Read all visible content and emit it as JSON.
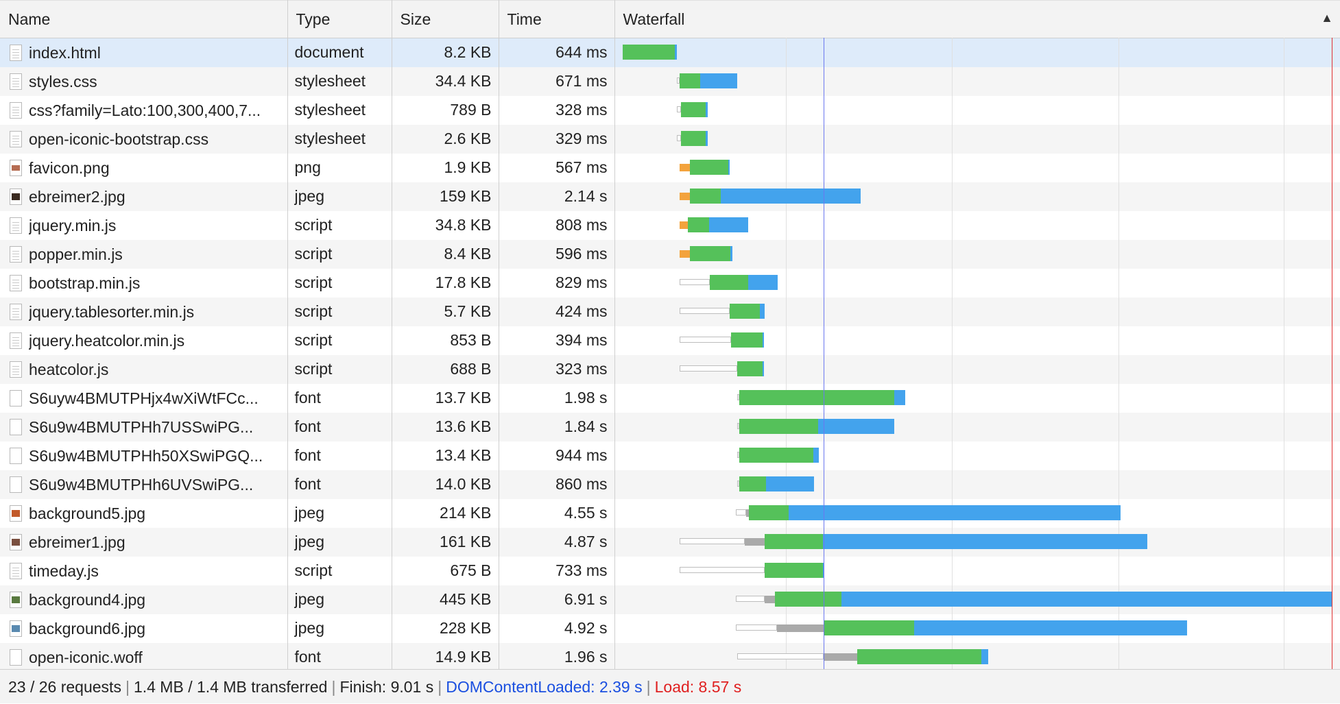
{
  "columns": {
    "name": "Name",
    "type": "Type",
    "size": "Size",
    "time": "Time",
    "waterfall": "Waterfall"
  },
  "sort_indicator": "▲",
  "rows": [
    {
      "name": "index.html",
      "type": "document",
      "size": "8.2 KB",
      "time": "644 ms",
      "icon": "document-icon",
      "wait": [
        0,
        0
      ],
      "queue": [
        0,
        0
      ],
      "dns": [
        0,
        0
      ],
      "ttfb": [
        0.004,
        0.077
      ],
      "dl": [
        0.077,
        0.08
      ]
    },
    {
      "name": "styles.css",
      "type": "stylesheet",
      "size": "34.4 KB",
      "time": "671 ms",
      "icon": "document-icon",
      "wait": [
        0.08,
        0.084
      ],
      "queue": [
        0,
        0
      ],
      "dns": [
        0,
        0
      ],
      "ttfb": [
        0.084,
        0.113
      ],
      "dl": [
        0.113,
        0.165
      ]
    },
    {
      "name": "css?family=Lato:100,300,400,7...",
      "type": "stylesheet",
      "size": "789 B",
      "time": "328 ms",
      "icon": "document-icon",
      "wait": [
        0.08,
        0.086
      ],
      "queue": [
        0,
        0
      ],
      "dns": [
        0,
        0
      ],
      "ttfb": [
        0.086,
        0.12
      ],
      "dl": [
        0.12,
        0.123
      ]
    },
    {
      "name": "open-iconic-bootstrap.css",
      "type": "stylesheet",
      "size": "2.6 KB",
      "time": "329 ms",
      "icon": "document-icon",
      "wait": [
        0.08,
        0.086
      ],
      "queue": [
        0,
        0
      ],
      "dns": [
        0,
        0
      ],
      "ttfb": [
        0.086,
        0.12
      ],
      "dl": [
        0.12,
        0.123
      ]
    },
    {
      "name": "favicon.png",
      "type": "png",
      "size": "1.9 KB",
      "time": "567 ms",
      "icon": "png-icon",
      "wait": [
        0,
        0
      ],
      "queue": [
        0,
        0
      ],
      "dns": [
        0.084,
        0.098
      ],
      "ttfb": [
        0.098,
        0.152
      ],
      "dl": [
        0.152,
        0.154
      ]
    },
    {
      "name": "ebreimer2.jpg",
      "type": "jpeg",
      "size": "159 KB",
      "time": "2.14 s",
      "icon": "image-icon",
      "thumb": "#3a2a20",
      "wait": [
        0,
        0
      ],
      "queue": [
        0,
        0
      ],
      "dns": [
        0.084,
        0.098
      ],
      "ttfb": [
        0.098,
        0.142
      ],
      "dl": [
        0.142,
        0.338
      ]
    },
    {
      "name": "jquery.min.js",
      "type": "script",
      "size": "34.8 KB",
      "time": "808 ms",
      "icon": "document-icon",
      "wait": [
        0,
        0
      ],
      "queue": [
        0,
        0
      ],
      "dns": [
        0.084,
        0.095
      ],
      "ttfb": [
        0.095,
        0.125
      ],
      "dl": [
        0.125,
        0.18
      ]
    },
    {
      "name": "popper.min.js",
      "type": "script",
      "size": "8.4 KB",
      "time": "596 ms",
      "icon": "document-icon",
      "wait": [
        0,
        0
      ],
      "queue": [
        0,
        0
      ],
      "dns": [
        0.084,
        0.098
      ],
      "ttfb": [
        0.098,
        0.155
      ],
      "dl": [
        0.155,
        0.158
      ]
    },
    {
      "name": "bootstrap.min.js",
      "type": "script",
      "size": "17.8 KB",
      "time": "829 ms",
      "icon": "document-icon",
      "wait": [
        0.084,
        0.126
      ],
      "queue": [
        0,
        0
      ],
      "dns": [
        0,
        0
      ],
      "ttfb": [
        0.126,
        0.18
      ],
      "dl": [
        0.18,
        0.222
      ]
    },
    {
      "name": "jquery.tablesorter.min.js",
      "type": "script",
      "size": "5.7 KB",
      "time": "424 ms",
      "icon": "document-icon",
      "wait": [
        0.084,
        0.154
      ],
      "queue": [
        0,
        0
      ],
      "dns": [
        0,
        0
      ],
      "ttfb": [
        0.154,
        0.197
      ],
      "dl": [
        0.197,
        0.203
      ]
    },
    {
      "name": "jquery.heatcolor.min.js",
      "type": "script",
      "size": "853 B",
      "time": "394 ms",
      "icon": "document-icon",
      "wait": [
        0.084,
        0.156
      ],
      "queue": [
        0,
        0
      ],
      "dns": [
        0,
        0
      ],
      "ttfb": [
        0.156,
        0.2
      ],
      "dl": [
        0.2,
        0.202
      ]
    },
    {
      "name": "heatcolor.js",
      "type": "script",
      "size": "688 B",
      "time": "323 ms",
      "icon": "document-icon",
      "wait": [
        0.084,
        0.165
      ],
      "queue": [
        0,
        0
      ],
      "dns": [
        0,
        0
      ],
      "ttfb": [
        0.165,
        0.2
      ],
      "dl": [
        0.2,
        0.202
      ]
    },
    {
      "name": "S6uyw4BMUTPHjx4wXiWtFCc...",
      "type": "font",
      "size": "13.7 KB",
      "time": "1.98 s",
      "icon": "font-icon",
      "wait": [
        0.165,
        0.168
      ],
      "queue": [
        0,
        0
      ],
      "dns": [
        0,
        0
      ],
      "ttfb": [
        0.168,
        0.385
      ],
      "dl": [
        0.385,
        0.401
      ]
    },
    {
      "name": "S6u9w4BMUTPHh7USSwiPG...",
      "type": "font",
      "size": "13.6 KB",
      "time": "1.84 s",
      "icon": "font-icon",
      "wait": [
        0.165,
        0.168
      ],
      "queue": [
        0,
        0
      ],
      "dns": [
        0,
        0
      ],
      "ttfb": [
        0.168,
        0.278
      ],
      "dl": [
        0.278,
        0.385
      ]
    },
    {
      "name": "S6u9w4BMUTPHh50XSwiPGQ...",
      "type": "font",
      "size": "13.4 KB",
      "time": "944 ms",
      "icon": "font-icon",
      "wait": [
        0.165,
        0.168
      ],
      "queue": [
        0,
        0
      ],
      "dns": [
        0,
        0
      ],
      "ttfb": [
        0.168,
        0.272
      ],
      "dl": [
        0.272,
        0.279
      ]
    },
    {
      "name": "S6u9w4BMUTPHh6UVSwiPG...",
      "type": "font",
      "size": "14.0 KB",
      "time": "860 ms",
      "icon": "font-icon",
      "wait": [
        0.165,
        0.168
      ],
      "queue": [
        0,
        0
      ],
      "dns": [
        0,
        0
      ],
      "ttfb": [
        0.168,
        0.205
      ],
      "dl": [
        0.205,
        0.273
      ]
    },
    {
      "name": "background5.jpg",
      "type": "jpeg",
      "size": "214 KB",
      "time": "4.55 s",
      "icon": "image-icon",
      "thumb": "#c25a2a",
      "wait": [
        0.163,
        0.177
      ],
      "queue": [
        0.177,
        0.181
      ],
      "dns": [
        0,
        0
      ],
      "ttfb": [
        0.181,
        0.237
      ],
      "dl": [
        0.237,
        0.703
      ]
    },
    {
      "name": "ebreimer1.jpg",
      "type": "jpeg",
      "size": "161 KB",
      "time": "4.87 s",
      "icon": "image-icon",
      "thumb": "#7a5040",
      "wait": [
        0.084,
        0.175
      ],
      "queue": [
        0.175,
        0.203
      ],
      "dns": [
        0,
        0
      ],
      "ttfb": [
        0.203,
        0.285
      ],
      "dl": [
        0.285,
        0.741
      ]
    },
    {
      "name": "timeday.js",
      "type": "script",
      "size": "675 B",
      "time": "733 ms",
      "icon": "document-icon",
      "wait": [
        0.084,
        0.203
      ],
      "queue": [
        0,
        0
      ],
      "dns": [
        0,
        0
      ],
      "ttfb": [
        0.203,
        0.285
      ],
      "dl": [
        0.285,
        0.287
      ]
    },
    {
      "name": "background4.jpg",
      "type": "jpeg",
      "size": "445 KB",
      "time": "6.91 s",
      "icon": "image-icon",
      "thumb": "#5a7a40",
      "wait": [
        0.163,
        0.203
      ],
      "queue": [
        0.203,
        0.218
      ],
      "dns": [
        0,
        0
      ],
      "ttfb": [
        0.218,
        0.311
      ],
      "dl": [
        0.311,
        1.0
      ]
    },
    {
      "name": "background6.jpg",
      "type": "jpeg",
      "size": "228 KB",
      "time": "4.92 s",
      "icon": "image-icon",
      "thumb": "#5a8ab0",
      "wait": [
        0.163,
        0.221
      ],
      "queue": [
        0.221,
        0.286
      ],
      "dns": [
        0,
        0
      ],
      "ttfb": [
        0.286,
        0.413
      ],
      "dl": [
        0.413,
        0.797
      ]
    },
    {
      "name": "open-iconic.woff",
      "type": "font",
      "size": "14.9 KB",
      "time": "1.96 s",
      "icon": "font-icon",
      "wait": [
        0.165,
        0.286
      ],
      "queue": [
        0.286,
        0.333
      ],
      "dns": [
        0,
        0
      ],
      "ttfb": [
        0.333,
        0.508
      ],
      "dl": [
        0.508,
        0.517
      ]
    }
  ],
  "timeline": {
    "grid_marks": [
      0.233,
      0.466,
      0.7,
      0.933
    ],
    "dcl_mark": 0.286,
    "load_mark": 1.0
  },
  "footer": {
    "requests": "23 / 26 requests",
    "transferred": "1.4 MB / 1.4 MB transferred",
    "finish": "Finish: 9.01 s",
    "dcl": "DOMContentLoaded: 2.39 s",
    "load": "Load: 8.57 s"
  },
  "colors": {
    "ttfb": "#55c15a",
    "download": "#43a3ed",
    "dns": "#f3a33c",
    "queue": "#aaaaaa",
    "dcl": "#1a4fe0",
    "load": "#e02020",
    "selected": "#deebfa"
  }
}
